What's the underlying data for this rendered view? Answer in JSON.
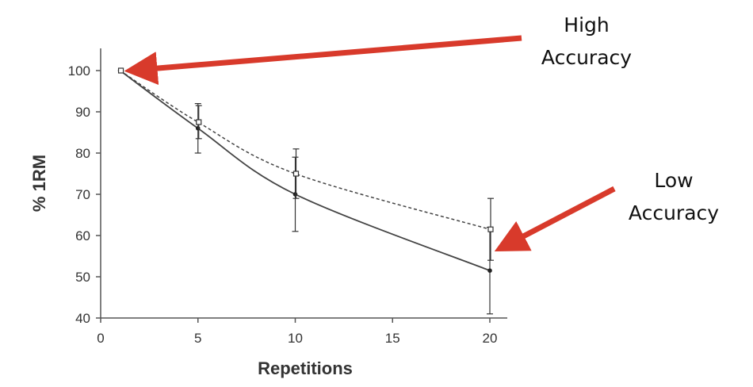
{
  "chart_data": {
    "type": "line",
    "title": "",
    "xlabel": "Repetitions",
    "ylabel": "% 1RM",
    "xlim": [
      0,
      21
    ],
    "ylim": [
      40,
      105
    ],
    "xticks": [
      0,
      5,
      10,
      15,
      20
    ],
    "yticks": [
      40,
      50,
      60,
      70,
      80,
      90,
      100
    ],
    "grid": false,
    "series": [
      {
        "style": "solid",
        "marker": "filled-circle",
        "color": "#444444",
        "x": [
          1,
          5,
          10,
          20
        ],
        "y": [
          100,
          86,
          70,
          51.5
        ],
        "error": [
          0,
          6,
          9,
          10.5
        ]
      },
      {
        "style": "dashed",
        "marker": "open-square",
        "color": "#444444",
        "x": [
          1,
          5,
          10,
          20
        ],
        "y": [
          100,
          87.5,
          75,
          61.5
        ],
        "error": [
          0,
          4,
          6,
          7.5
        ]
      }
    ],
    "annotations": [
      {
        "text": [
          "High",
          "Accuracy"
        ],
        "target_x": 1,
        "target_y": 100,
        "color": "#d83a2b"
      },
      {
        "text": [
          "Low",
          "Accuracy"
        ],
        "target_x": 20,
        "target_y": 56,
        "color": "#d83a2b"
      }
    ]
  }
}
